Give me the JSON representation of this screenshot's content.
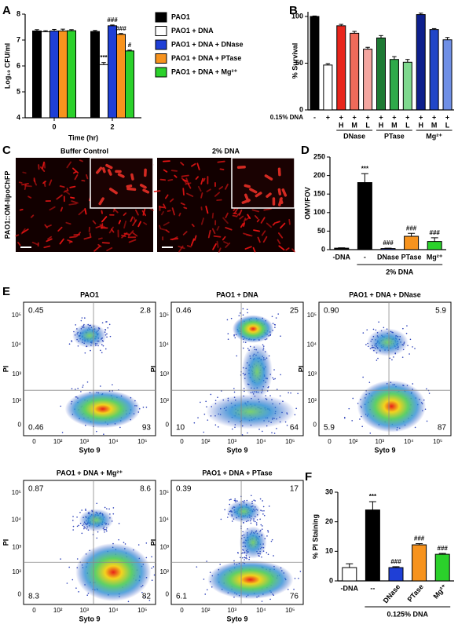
{
  "panel_labels": [
    "A",
    "B",
    "C",
    "D",
    "E",
    "F"
  ],
  "chart_data": [
    {
      "type": "grouped_bar",
      "ylabel": "Log₁₀ CFU/ml",
      "xlabel": "Time (hr)",
      "categories": [
        "0",
        "2"
      ],
      "ylim": [
        4,
        8
      ],
      "yticks": [
        4,
        5,
        6,
        7,
        8
      ],
      "series": [
        {
          "name": "PAO1",
          "color": "#000000",
          "values": [
            7.35,
            7.33
          ],
          "errors": [
            0.05,
            0.04
          ],
          "significance": [
            null,
            null
          ]
        },
        {
          "name": "PAO1 + DNA",
          "color": "#ffffff",
          "values": [
            7.32,
            6.05
          ],
          "errors": [
            0.04,
            0.08
          ],
          "significance": [
            null,
            "***"
          ]
        },
        {
          "name": "PAO1 + DNA + DNase",
          "color": "#1f3fd6",
          "values": [
            7.35,
            7.55
          ],
          "errors": [
            0.06,
            0.03
          ],
          "significance": [
            null,
            "###"
          ]
        },
        {
          "name": "PAO1 + DNA + PTase",
          "color": "#f7931e",
          "values": [
            7.35,
            7.22
          ],
          "errors": [
            0.07,
            0.03
          ],
          "significance": [
            null,
            "###"
          ]
        },
        {
          "name": "PAO1 + DNA + Mg²⁺",
          "color": "#2bd12b",
          "values": [
            7.36,
            6.58
          ],
          "errors": [
            0.04,
            0.03
          ],
          "significance": [
            null,
            "#"
          ]
        }
      ]
    },
    {
      "type": "bar",
      "ylabel": "% Survival",
      "ylim": [
        0,
        105
      ],
      "yticks": [
        0,
        50,
        100
      ],
      "row_label": "0.15% DNA",
      "categories": [
        "-",
        "+",
        "+",
        "+",
        "+",
        "+",
        "+",
        "+",
        "+",
        "+",
        "+"
      ],
      "levels": [
        null,
        null,
        "H",
        "M",
        "L",
        "H",
        "M",
        "L",
        "H",
        "M",
        "L"
      ],
      "groups": [
        "DNase",
        "PTase",
        "Mg²⁺"
      ],
      "values": [
        100,
        48,
        90,
        82,
        65,
        77,
        54,
        51,
        102,
        86,
        75
      ],
      "errors": [
        0.5,
        1.5,
        1.5,
        2,
        2,
        2.5,
        3,
        3,
        1.5,
        1,
        2.5
      ],
      "colors": [
        "#000000",
        "#ffffff",
        "#e8251c",
        "#f06a5a",
        "#f4a6a0",
        "#1e7a34",
        "#2eaa4a",
        "#7fd98f",
        "#0d1f8c",
        "#2146c8",
        "#6f8fe6"
      ]
    },
    {
      "type": "bar",
      "ylabel": "OMV/FOV",
      "ylim": [
        0,
        250
      ],
      "yticks": [
        0,
        50,
        100,
        150,
        200,
        250
      ],
      "group_label": "2% DNA",
      "categories": [
        "-DNA",
        "-",
        "DNase",
        "PTase",
        "Mg²⁺"
      ],
      "values": [
        4,
        181,
        3,
        36,
        22
      ],
      "errors": [
        1,
        24,
        1,
        8,
        10
      ],
      "colors": [
        "#000000",
        "#000000",
        "#1f3fd6",
        "#f7931e",
        "#2bd12b"
      ],
      "significance": [
        null,
        "***",
        "###",
        "###",
        "###"
      ]
    },
    {
      "type": "bar",
      "ylabel": "% PI Staining",
      "ylim": [
        0,
        30
      ],
      "yticks": [
        0,
        10,
        20,
        30
      ],
      "group_label": "0.125% DNA",
      "categories": [
        "-DNA",
        "--",
        "DNase",
        "PTase",
        "Mg²⁺"
      ],
      "values": [
        4.5,
        24,
        4.5,
        12.2,
        9
      ],
      "errors": [
        1.3,
        2.8,
        0.3,
        0.4,
        0.3
      ],
      "colors": [
        "#ffffff",
        "#000000",
        "#1f3fd6",
        "#f7931e",
        "#2bd12b"
      ],
      "significance": [
        null,
        "***",
        "###",
        "###",
        "###"
      ]
    }
  ],
  "image_panels": {
    "ylabel": "PAO1::OM-lipoChFP",
    "titles": [
      "Buffer Control",
      "2% DNA"
    ]
  },
  "flow_plots": {
    "xlabel": "Syto 9",
    "ylabel": "PI",
    "ticks": [
      "0",
      "10²",
      "10³",
      "10⁴",
      "10⁵"
    ],
    "plots": [
      {
        "title": "PAO1",
        "quadrants": [
          "0.45",
          "2.8",
          "0.46",
          "93"
        ]
      },
      {
        "title": "PAO1 + DNA",
        "quadrants": [
          "0.46",
          "25",
          "10",
          "64"
        ]
      },
      {
        "title": "PAO1 + DNA + DNase",
        "quadrants": [
          "0.90",
          "5.9",
          "5.9",
          "87"
        ]
      },
      {
        "title": "PAO1 + DNA + Mg²⁺",
        "quadrants": [
          "0.87",
          "8.6",
          "8.3",
          "82"
        ]
      },
      {
        "title": "PAO1 + DNA + PTase",
        "quadrants": [
          "0.39",
          "17",
          "6.1",
          "76"
        ]
      }
    ]
  }
}
